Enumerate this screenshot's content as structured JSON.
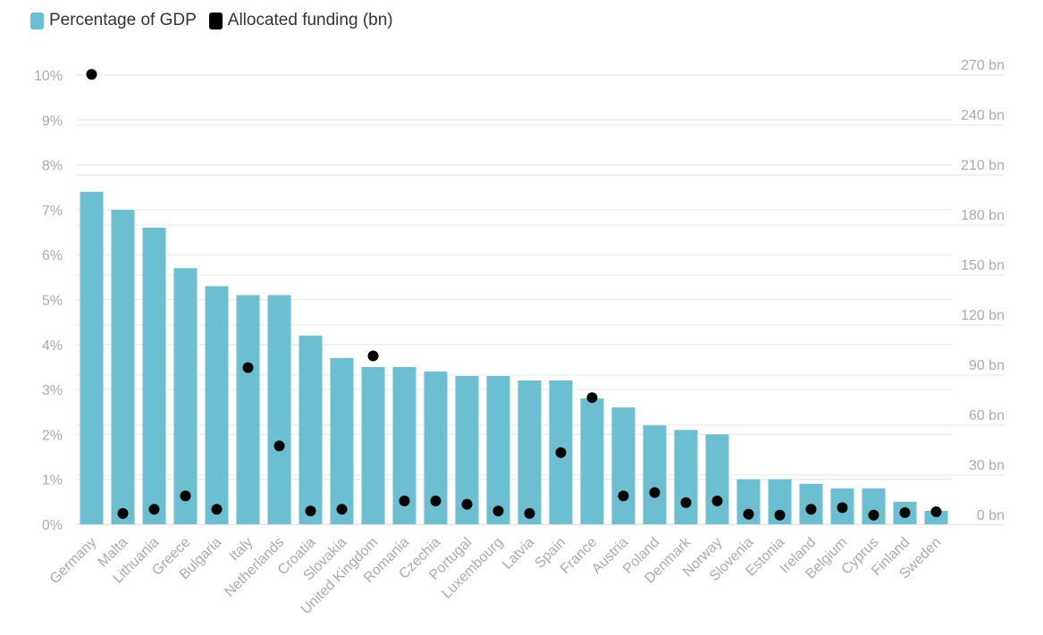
{
  "legend": {
    "bar_label": "Percentage of GDP",
    "dot_label": "Allocated funding (bn)"
  },
  "colors": {
    "bar": "#6bbfd0",
    "dot": "#000000",
    "grid": "#e6e6e6",
    "tick": "#aaaaaa"
  },
  "chart_data": {
    "type": "bar",
    "categories": [
      "Germany",
      "Malta",
      "Lithuania",
      "Greece",
      "Bulgaria",
      "Italy",
      "Netherlands",
      "Croatia",
      "Slovakia",
      "United Kingdom",
      "Romania",
      "Czechia",
      "Portugal",
      "Luxembourg",
      "Latvia",
      "Spain",
      "France",
      "Austria",
      "Poland",
      "Denmark",
      "Norway",
      "Slovenia",
      "Estonia",
      "Ireland",
      "Belgium",
      "Cyprus",
      "Finland",
      "Sweden"
    ],
    "series": [
      {
        "name": "Percentage of GDP",
        "type": "bar",
        "axis": "left",
        "values": [
          7.4,
          7.0,
          6.6,
          5.7,
          5.3,
          5.1,
          5.1,
          4.2,
          3.7,
          3.5,
          3.5,
          3.4,
          3.3,
          3.3,
          3.2,
          3.2,
          2.8,
          2.6,
          2.2,
          2.1,
          2.0,
          1.0,
          1.0,
          0.9,
          0.8,
          0.8,
          0.5,
          0.3
        ]
      },
      {
        "name": "Allocated funding (bn)",
        "type": "scatter",
        "axis": "right",
        "values": [
          264,
          0.5,
          3,
          11,
          3,
          88,
          41,
          2,
          3,
          95,
          8,
          8,
          6,
          2,
          0.5,
          37,
          70,
          11,
          13,
          7,
          8,
          0,
          -0.5,
          3,
          4,
          -0.5,
          1,
          1.5
        ]
      }
    ],
    "y_left": {
      "min": 0,
      "max": 10,
      "ticks": [
        0,
        1,
        2,
        3,
        4,
        5,
        6,
        7,
        8,
        9,
        10
      ],
      "tick_labels": [
        "0%",
        "1%",
        "2%",
        "3%",
        "4%",
        "5%",
        "6%",
        "7%",
        "8%",
        "9%",
        "10%"
      ]
    },
    "y_right": {
      "min": -6,
      "max": 270,
      "ticks": [
        0,
        30,
        60,
        90,
        120,
        150,
        180,
        210,
        240,
        270
      ],
      "tick_labels": [
        "0 bn",
        "30 bn",
        "60 bn",
        "90 bn",
        "120 bn",
        "150 bn",
        "180 bn",
        "210 bn",
        "240 bn",
        "270 bn"
      ]
    },
    "grid": true,
    "legend_position": "top-left"
  }
}
